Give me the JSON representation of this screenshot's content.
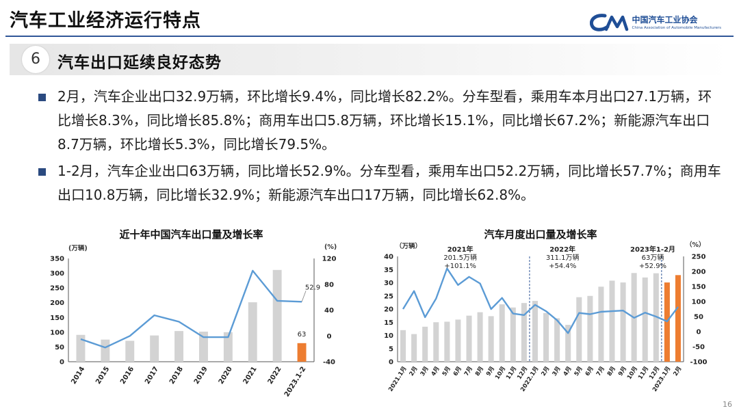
{
  "header": {
    "title": "汽车工业经济运行特点",
    "logo_cn": "中国汽车工业协会",
    "logo_en": "China Association of Automobile Manufacturers"
  },
  "section": {
    "number": "6",
    "title": "汽车出口延续良好态势"
  },
  "bullets": [
    "2月，汽车企业出口32.9万辆，环比增长9.4%，同比增长82.2%。分车型看，乘用车本月出口27.1万辆，环比增长8.3%，同比增长85.8%；商用车出口5.8万辆，环比增长15.1%，同比增长67.2%；新能源汽车出口8.7万辆，环比增长5.3%，同比增长79.5%。",
    "1-2月，汽车企业出口63万辆，同比增长52.9%。分车型看，乘用车出口52.2万辆，同比增长57.7%；商用车出口10.8万辆，同比增长32.9%；新能源汽车出口17万辆，同比增长62.8%。"
  ],
  "page_number": "16",
  "colors": {
    "bar": "#d3d3d3",
    "bar_highlight": "#ed7d31",
    "line": "#5b9bd5",
    "accent": "#2f5597"
  },
  "chart_data": [
    {
      "type": "bar+line",
      "title": "近十年中国汽车出口量及增长率",
      "y_left_unit": "(万辆)",
      "y_right_unit": "(%)",
      "y_left_range": [
        0,
        350
      ],
      "y_left_ticks": [
        "0",
        "50",
        "100",
        "150",
        "200",
        "250",
        "300",
        "350"
      ],
      "y_right_range": [
        -40,
        120
      ],
      "y_right_ticks": [
        "-40",
        "0",
        "40",
        "80",
        "120"
      ],
      "categories": [
        "2014",
        "2015",
        "2016",
        "2017",
        "2018",
        "2019",
        "2020",
        "2021",
        "2022",
        "2023.1-2"
      ],
      "bar_values": [
        91,
        75,
        71,
        89,
        104,
        102,
        100,
        201.5,
        311.1,
        63
      ],
      "line_values": [
        -5,
        -18,
        0,
        32,
        22,
        -2,
        -2,
        101,
        54.4,
        52.9
      ],
      "highlight_index": 9,
      "labels": {
        "last_bar": "63",
        "last_growth": "52.9"
      }
    },
    {
      "type": "bar+line",
      "title": "汽车月度出口量及增长率",
      "y_left_unit": "（万辆）",
      "y_right_unit": "（%）",
      "y_left_range": [
        0,
        40
      ],
      "y_left_ticks": [
        "0",
        "5",
        "10",
        "15",
        "20",
        "25",
        "30",
        "35",
        "40"
      ],
      "y_right_range": [
        -100,
        250
      ],
      "y_right_ticks": [
        "-100",
        "-50",
        "0",
        "50",
        "100",
        "150",
        "200",
        "250"
      ],
      "categories": [
        "2021.1月",
        "2月",
        "3月",
        "4月",
        "5月",
        "6月",
        "7月",
        "8月",
        "9月",
        "10月",
        "11月",
        "12月",
        "2022.1月",
        "2月",
        "3月",
        "4月",
        "5月",
        "6月",
        "7月",
        "8月",
        "9月",
        "10月",
        "11月",
        "12月",
        "2023.1月",
        "2月"
      ],
      "bar_values": [
        12,
        10.5,
        13.3,
        15,
        15.2,
        16,
        17.5,
        18.8,
        17.3,
        21.8,
        20.6,
        22.3,
        23.1,
        18.5,
        16.5,
        14,
        24.5,
        25,
        28.5,
        30.8,
        30.1,
        33.7,
        32,
        33.6,
        30.1,
        32.9
      ],
      "line_values": [
        75,
        135,
        48,
        110,
        210,
        155,
        182,
        160,
        75,
        112,
        60,
        55,
        89,
        68,
        38,
        -5,
        62,
        58,
        66,
        68,
        70,
        46,
        63,
        50,
        34,
        82.2
      ],
      "highlight_indices": [
        24,
        25
      ],
      "annotations": [
        {
          "lines": [
            "2021年",
            "201.5万辆",
            "+101.1%"
          ]
        },
        {
          "lines": [
            "2022年",
            "311.1万辆",
            "+54.4%"
          ]
        },
        {
          "lines": [
            "2023年1-2月",
            "63万辆",
            "+52.9%"
          ]
        }
      ]
    }
  ]
}
